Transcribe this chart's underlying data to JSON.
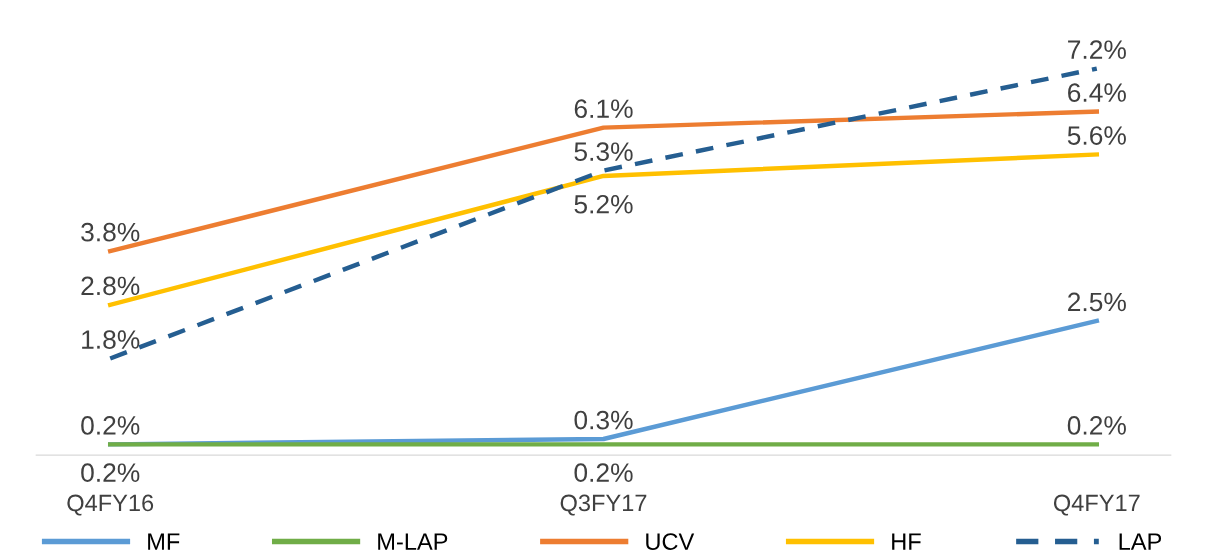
{
  "chart_data": {
    "type": "line",
    "categories": [
      "Q4FY16",
      "Q3FY17",
      "Q4FY17"
    ],
    "series": [
      {
        "name": "MF",
        "color": "#5b9bd5",
        "values": [
          0.2,
          0.3,
          2.5
        ],
        "value_labels": [
          "0.2%",
          "0.3%",
          "2.5%"
        ]
      },
      {
        "name": "M-LAP",
        "color": "#70ad47",
        "values": [
          0.2,
          0.2,
          0.2
        ],
        "value_labels": [
          "0.2%",
          "0.2%",
          "0.2%"
        ]
      },
      {
        "name": "UCV",
        "color": "#ed7d31",
        "values": [
          3.8,
          6.1,
          6.4
        ],
        "value_labels": [
          "3.8%",
          "6.1%",
          "6.4%"
        ]
      },
      {
        "name": "HF",
        "color": "#ffc000",
        "values": [
          2.8,
          5.2,
          5.6
        ],
        "value_labels": [
          "2.8%",
          "5.2%",
          "5.6%"
        ]
      },
      {
        "name": "LAP",
        "color": "#255e91",
        "values": [
          1.8,
          5.3,
          7.2
        ],
        "value_labels": [
          "1.8%",
          "5.3%",
          "7.2%"
        ],
        "line_style": "dashed"
      }
    ],
    "legend": "bottom",
    "grid": false,
    "marker": "none"
  }
}
